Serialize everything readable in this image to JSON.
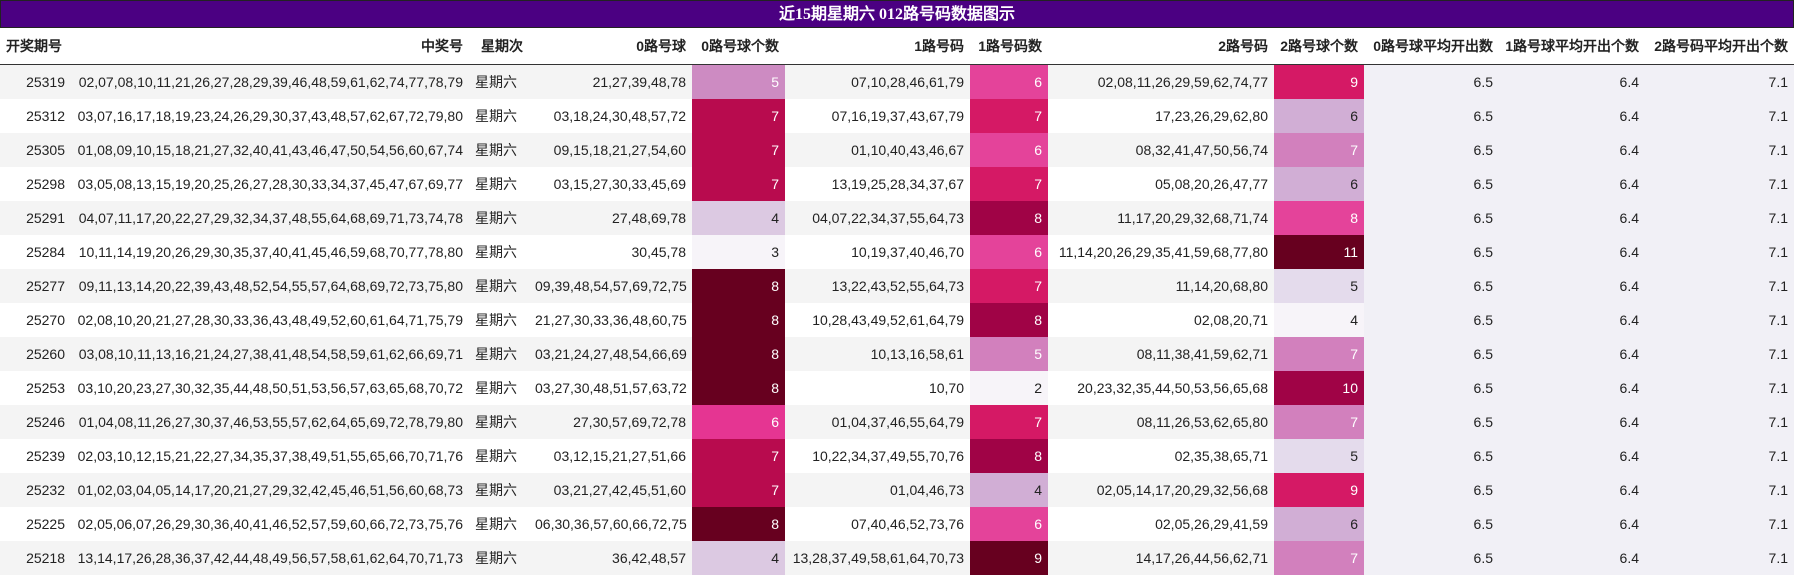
{
  "title": "近15期星期六 012路号码数据图示",
  "table": {
    "columns": [
      "开奖期号",
      "中奖号",
      "星期次",
      "0路号球",
      "0路号球个数",
      "1路号码",
      "1路号码数",
      "2路号码",
      "2路号球个数",
      "0路号球平均开出数",
      "1路号球平均开出个数",
      "2路号码平均开出个数"
    ],
    "rows": [
      [
        "25319",
        "02,07,08,10,11,21,26,27,28,29,39,46,48,59,61,62,74,77,78,79",
        "星期六",
        "21,27,39,48,78",
        5,
        "07,10,28,46,61,79",
        6,
        "02,08,11,26,29,59,62,74,77",
        9,
        6.5,
        6.4,
        7.1
      ],
      [
        "25312",
        "03,07,16,17,18,19,23,24,26,29,30,37,43,48,57,62,67,72,79,80",
        "星期六",
        "03,18,24,30,48,57,72",
        7,
        "07,16,19,37,43,67,79",
        7,
        "17,23,26,29,62,80",
        6,
        6.5,
        6.4,
        7.1
      ],
      [
        "25305",
        "01,08,09,10,15,18,21,27,32,40,41,43,46,47,50,54,56,60,67,74",
        "星期六",
        "09,15,18,21,27,54,60",
        7,
        "01,10,40,43,46,67",
        6,
        "08,32,41,47,50,56,74",
        7,
        6.5,
        6.4,
        7.1
      ],
      [
        "25298",
        "03,05,08,13,15,19,20,25,26,27,28,30,33,34,37,45,47,67,69,77",
        "星期六",
        "03,15,27,30,33,45,69",
        7,
        "13,19,25,28,34,37,67",
        7,
        "05,08,20,26,47,77",
        6,
        6.5,
        6.4,
        7.1
      ],
      [
        "25291",
        "04,07,11,17,20,22,27,29,32,34,37,48,55,64,68,69,71,73,74,78",
        "星期六",
        "27,48,69,78",
        4,
        "04,07,22,34,37,55,64,73",
        8,
        "11,17,20,29,32,68,71,74",
        8,
        6.5,
        6.4,
        7.1
      ],
      [
        "25284",
        "10,11,14,19,20,26,29,30,35,37,40,41,45,46,59,68,70,77,78,80",
        "星期六",
        "30,45,78",
        3,
        "10,19,37,40,46,70",
        6,
        "11,14,20,26,29,35,41,59,68,77,80",
        11,
        6.5,
        6.4,
        7.1
      ],
      [
        "25277",
        "09,11,13,14,20,22,39,43,48,52,54,55,57,64,68,69,72,73,75,80",
        "星期六",
        "09,39,48,54,57,69,72,75",
        8,
        "13,22,43,52,55,64,73",
        7,
        "11,14,20,68,80",
        5,
        6.5,
        6.4,
        7.1
      ],
      [
        "25270",
        "02,08,10,20,21,27,28,30,33,36,43,48,49,52,60,61,64,71,75,79",
        "星期六",
        "21,27,30,33,36,48,60,75",
        8,
        "10,28,43,49,52,61,64,79",
        8,
        "02,08,20,71",
        4,
        6.5,
        6.4,
        7.1
      ],
      [
        "25260",
        "03,08,10,11,13,16,21,24,27,38,41,48,54,58,59,61,62,66,69,71",
        "星期六",
        "03,21,24,27,48,54,66,69",
        8,
        "10,13,16,58,61",
        5,
        "08,11,38,41,59,62,71",
        7,
        6.5,
        6.4,
        7.1
      ],
      [
        "25253",
        "03,10,20,23,27,30,32,35,44,48,50,51,53,56,57,63,65,68,70,72",
        "星期六",
        "03,27,30,48,51,57,63,72",
        8,
        "10,70",
        2,
        "20,23,32,35,44,50,53,56,65,68",
        10,
        6.5,
        6.4,
        7.1
      ],
      [
        "25246",
        "01,04,08,11,26,27,30,37,46,53,55,57,62,64,65,69,72,78,79,80",
        "星期六",
        "27,30,57,69,72,78",
        6,
        "01,04,37,46,55,64,79",
        7,
        "08,11,26,53,62,65,80",
        7,
        6.5,
        6.4,
        7.1
      ],
      [
        "25239",
        "02,03,10,12,15,21,22,27,34,35,37,38,49,51,55,65,66,70,71,76",
        "星期六",
        "03,12,15,21,27,51,66",
        7,
        "10,22,34,37,49,55,70,76",
        8,
        "02,35,38,65,71",
        5,
        6.5,
        6.4,
        7.1
      ],
      [
        "25232",
        "01,02,03,04,05,14,17,20,21,27,29,32,42,45,46,51,56,60,68,73",
        "星期六",
        "03,21,27,42,45,51,60",
        7,
        "01,04,46,73",
        4,
        "02,05,14,17,20,29,32,56,68",
        9,
        6.5,
        6.4,
        7.1
      ],
      [
        "25225",
        "02,05,06,07,26,29,30,36,40,41,46,52,57,59,60,66,72,73,75,76",
        "星期六",
        "06,30,36,57,60,66,72,75",
        8,
        "07,40,46,52,73,76",
        6,
        "02,05,26,29,41,59",
        6,
        6.5,
        6.4,
        7.1
      ],
      [
        "25218",
        "13,14,17,26,28,36,37,42,44,48,49,56,57,58,61,62,64,70,71,73",
        "星期六",
        "36,42,48,57",
        4,
        "13,28,37,49,58,61,64,70,73",
        9,
        "14,17,26,44,56,62,71",
        7,
        6.5,
        6.4,
        7.1
      ]
    ]
  }
}
